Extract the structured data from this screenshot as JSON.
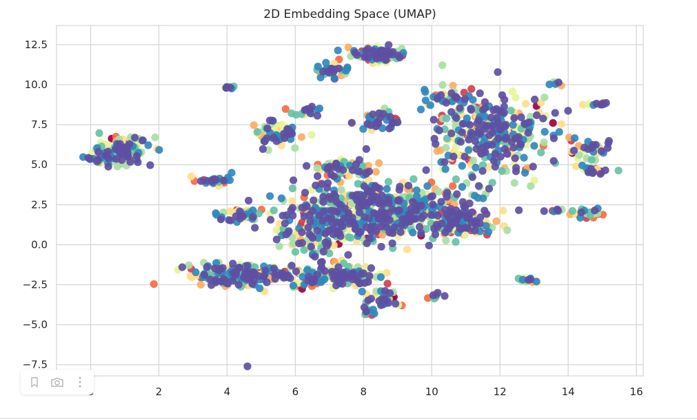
{
  "toolbar": {
    "icons": [
      "bookmark-icon",
      "camera-icon",
      "more-vertical-icon"
    ]
  },
  "chart_data": {
    "type": "scatter",
    "title": "2D Embedding Space (UMAP)",
    "xlabel": "",
    "ylabel": "",
    "xlim": [
      -1,
      16.2
    ],
    "ylim": [
      -8.2,
      13.7
    ],
    "x_ticks": [
      0,
      2,
      4,
      6,
      8,
      10,
      12,
      14,
      16
    ],
    "x_tick_labels": [
      "0",
      "2",
      "4",
      "6",
      "8",
      "10",
      "12",
      "14",
      "16"
    ],
    "y_ticks": [
      -7.5,
      -5.0,
      -2.5,
      0.0,
      2.5,
      5.0,
      7.5,
      10.0,
      12.5
    ],
    "y_tick_labels": [
      "−7.5",
      "−5.0",
      "−2.5",
      "0.0",
      "2.5",
      "5.0",
      "7.5",
      "10.0",
      "12.5"
    ],
    "grid": true,
    "colormap": "Spectral",
    "palette": [
      "#9e0142",
      "#d53e4f",
      "#f46d43",
      "#fdae61",
      "#fee08b",
      "#e6f598",
      "#abdda4",
      "#66c2a5",
      "#3288bd",
      "#5e4fa2"
    ],
    "clusters": [
      {
        "center": [
          0.9,
          5.9
        ],
        "spread": [
          0.7,
          0.7
        ],
        "n": 110
      },
      {
        "center": [
          0.3,
          5.4
        ],
        "spread": [
          0.5,
          0.35
        ],
        "n": 30
      },
      {
        "center": [
          8.4,
          11.9
        ],
        "spread": [
          0.55,
          0.35
        ],
        "n": 110
      },
      {
        "center": [
          7.0,
          10.8
        ],
        "spread": [
          0.45,
          0.5
        ],
        "n": 30
      },
      {
        "center": [
          4.0,
          9.8
        ],
        "spread": [
          0.2,
          0.12
        ],
        "n": 10
      },
      {
        "center": [
          5.4,
          7.0
        ],
        "spread": [
          0.55,
          0.6
        ],
        "n": 65
      },
      {
        "center": [
          6.4,
          8.3
        ],
        "spread": [
          0.4,
          0.3
        ],
        "n": 18
      },
      {
        "center": [
          8.4,
          7.8
        ],
        "spread": [
          0.6,
          0.5
        ],
        "n": 45
      },
      {
        "center": [
          11.7,
          7.0
        ],
        "spread": [
          1.5,
          2.0
        ],
        "n": 340
      },
      {
        "center": [
          10.3,
          9.2
        ],
        "spread": [
          0.5,
          0.5
        ],
        "n": 30
      },
      {
        "center": [
          13.6,
          10.1
        ],
        "spread": [
          0.2,
          0.15
        ],
        "n": 6
      },
      {
        "center": [
          14.9,
          8.8
        ],
        "spread": [
          0.25,
          0.12
        ],
        "n": 10
      },
      {
        "center": [
          14.6,
          5.9
        ],
        "spread": [
          0.6,
          0.6
        ],
        "n": 35
      },
      {
        "center": [
          14.8,
          4.6
        ],
        "spread": [
          0.45,
          0.2
        ],
        "n": 20
      },
      {
        "center": [
          14.6,
          2.0
        ],
        "spread": [
          0.45,
          0.25
        ],
        "n": 25
      },
      {
        "center": [
          13.6,
          2.1
        ],
        "spread": [
          0.3,
          0.15
        ],
        "n": 6
      },
      {
        "center": [
          8.6,
          2.1
        ],
        "spread": [
          2.1,
          1.5
        ],
        "n": 560
      },
      {
        "center": [
          10.9,
          1.3
        ],
        "spread": [
          0.8,
          0.8
        ],
        "n": 100
      },
      {
        "center": [
          6.8,
          0.7
        ],
        "spread": [
          1.0,
          1.4
        ],
        "n": 140
      },
      {
        "center": [
          7.4,
          4.8
        ],
        "spread": [
          0.7,
          0.5
        ],
        "n": 60
      },
      {
        "center": [
          3.7,
          4.0
        ],
        "spread": [
          0.6,
          0.25
        ],
        "n": 35
      },
      {
        "center": [
          4.5,
          1.9
        ],
        "spread": [
          0.6,
          0.4
        ],
        "n": 40
      },
      {
        "center": [
          4.3,
          -1.9
        ],
        "spread": [
          1.2,
          0.55
        ],
        "n": 190
      },
      {
        "center": [
          7.1,
          -2.0
        ],
        "spread": [
          1.1,
          0.6
        ],
        "n": 140
      },
      {
        "center": [
          8.5,
          -3.3
        ],
        "spread": [
          0.45,
          0.6
        ],
        "n": 35
      },
      {
        "center": [
          8.2,
          -4.2
        ],
        "spread": [
          0.3,
          0.2
        ],
        "n": 10
      },
      {
        "center": [
          10.1,
          -3.2
        ],
        "spread": [
          0.2,
          0.2
        ],
        "n": 8
      },
      {
        "center": [
          12.8,
          -2.2
        ],
        "spread": [
          0.3,
          0.12
        ],
        "n": 12
      },
      {
        "center": [
          4.6,
          -7.6
        ],
        "spread": [
          0.01,
          0.01
        ],
        "n": 1
      }
    ]
  }
}
